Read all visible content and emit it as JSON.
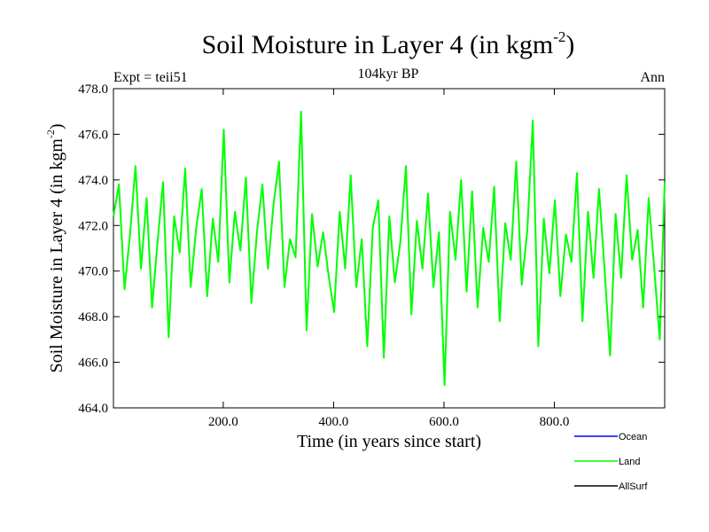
{
  "header": {
    "title": "Soil Moisture in Layer 4 (in kgm",
    "title_sup": "-2",
    "title_close": ")",
    "expt": "Expt = teii51",
    "subtitle": "104kyr BP",
    "period": "Ann"
  },
  "chart_data": {
    "type": "line",
    "title": "Soil Moisture in Layer 4 (in kgm-2)",
    "xlabel": "Time (in years since start)",
    "ylabel": "Soil Moisture in Layer 4 (in kgm-2)",
    "ylabel_parts": {
      "main": "Soil Moisture in Layer 4 (in kgm",
      "sup": "-2",
      "close": ")"
    },
    "xlim": [
      1,
      1000
    ],
    "ylim": [
      464.0,
      478.0
    ],
    "x_ticks": [
      200,
      400,
      600,
      800
    ],
    "x_tick_labels": [
      "200.0",
      "400.0",
      "600.0",
      "800.0"
    ],
    "y_ticks": [
      464,
      466,
      468,
      470,
      472,
      474,
      476,
      478
    ],
    "y_tick_labels": [
      "464.0",
      "466.0",
      "468.0",
      "470.0",
      "472.0",
      "474.0",
      "476.0",
      "478.0"
    ],
    "legend_position": "bottom-right, below plot",
    "colors": {
      "Ocean": "#0000ff",
      "Land": "#00ff00",
      "AllSurf": "#000000"
    },
    "series": [
      {
        "name": "Ocean",
        "color": "#0000ff",
        "x": [],
        "y": []
      },
      {
        "name": "AllSurf",
        "color": "#000000",
        "x": [],
        "y": []
      },
      {
        "name": "Land",
        "color": "#00ff00",
        "x": [
          1,
          11,
          21,
          31,
          41,
          51,
          61,
          71,
          81,
          91,
          101,
          111,
          121,
          131,
          141,
          151,
          161,
          171,
          181,
          191,
          201,
          211,
          221,
          231,
          241,
          251,
          261,
          271,
          281,
          291,
          301,
          311,
          321,
          331,
          341,
          351,
          361,
          371,
          381,
          391,
          401,
          411,
          421,
          431,
          441,
          451,
          461,
          471,
          481,
          491,
          501,
          511,
          521,
          531,
          541,
          551,
          561,
          571,
          581,
          591,
          601,
          611,
          621,
          631,
          641,
          651,
          661,
          671,
          681,
          691,
          701,
          711,
          721,
          731,
          741,
          751,
          761,
          771,
          781,
          791,
          801,
          811,
          821,
          831,
          841,
          851,
          861,
          871,
          881,
          891,
          901,
          911,
          921,
          931,
          941,
          951,
          961,
          971,
          981,
          991,
          1000
        ],
        "y": [
          472.4,
          473.8,
          469.2,
          471.6,
          474.6,
          470.1,
          473.2,
          468.4,
          471.3,
          473.9,
          467.1,
          472.4,
          470.8,
          474.5,
          469.3,
          471.9,
          473.6,
          468.9,
          472.3,
          470.4,
          476.2,
          469.5,
          472.6,
          470.9,
          474.1,
          468.6,
          471.7,
          473.8,
          470.1,
          472.9,
          474.8,
          469.3,
          471.4,
          470.6,
          477.0,
          467.4,
          472.5,
          470.2,
          471.7,
          469.8,
          468.2,
          472.6,
          470.1,
          474.2,
          469.3,
          471.4,
          466.7,
          471.9,
          473.1,
          466.2,
          472.4,
          469.5,
          471.3,
          474.6,
          468.1,
          472.2,
          470.1,
          473.4,
          469.3,
          471.7,
          465.0,
          472.6,
          470.5,
          474.0,
          469.1,
          473.5,
          468.4,
          471.9,
          470.4,
          473.7,
          467.8,
          472.1,
          470.5,
          474.8,
          469.4,
          471.8,
          476.6,
          466.7,
          472.3,
          469.9,
          473.1,
          468.9,
          471.6,
          470.4,
          474.3,
          467.8,
          472.6,
          469.7,
          473.6,
          470.1,
          466.3,
          472.5,
          469.7,
          474.2,
          470.5,
          471.8,
          468.4,
          473.2,
          470.1,
          467.0,
          473.9
        ]
      }
    ]
  }
}
